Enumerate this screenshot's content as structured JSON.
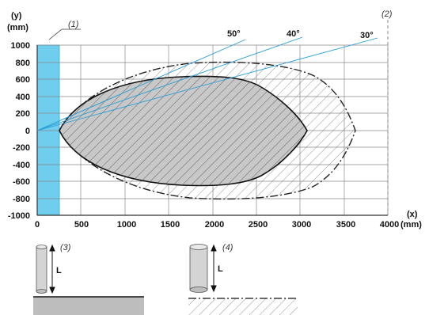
{
  "axes": {
    "y_title": "(y)",
    "y_unit": "(mm)",
    "x_title": "(x)",
    "x_unit": "(mm)",
    "x_ticks": [
      "0",
      "500",
      "1000",
      "1500",
      "2000",
      "2500",
      "3000",
      "3500",
      "4000"
    ],
    "y_ticks": [
      "1000",
      "800",
      "600",
      "400",
      "200",
      "0",
      "-200",
      "-400",
      "-600",
      "-800",
      "-1000"
    ]
  },
  "angles": [
    "50°",
    "40°",
    "30°"
  ],
  "callouts": [
    "(1)",
    "(2)",
    "(3)",
    "(4)"
  ],
  "length_labels": [
    "L",
    "L"
  ],
  "colors": {
    "blue_bar": "#6fcdee",
    "beam_line": "#2a9fd6",
    "inner_fill": "#c8c8c8",
    "grid": "#777777",
    "plate": "#bdbdbd"
  },
  "icons": [
    "cylinder-target-icon",
    "arrow-length-icon",
    "metal-plate-icon",
    "hatched-plate-icon"
  ]
}
